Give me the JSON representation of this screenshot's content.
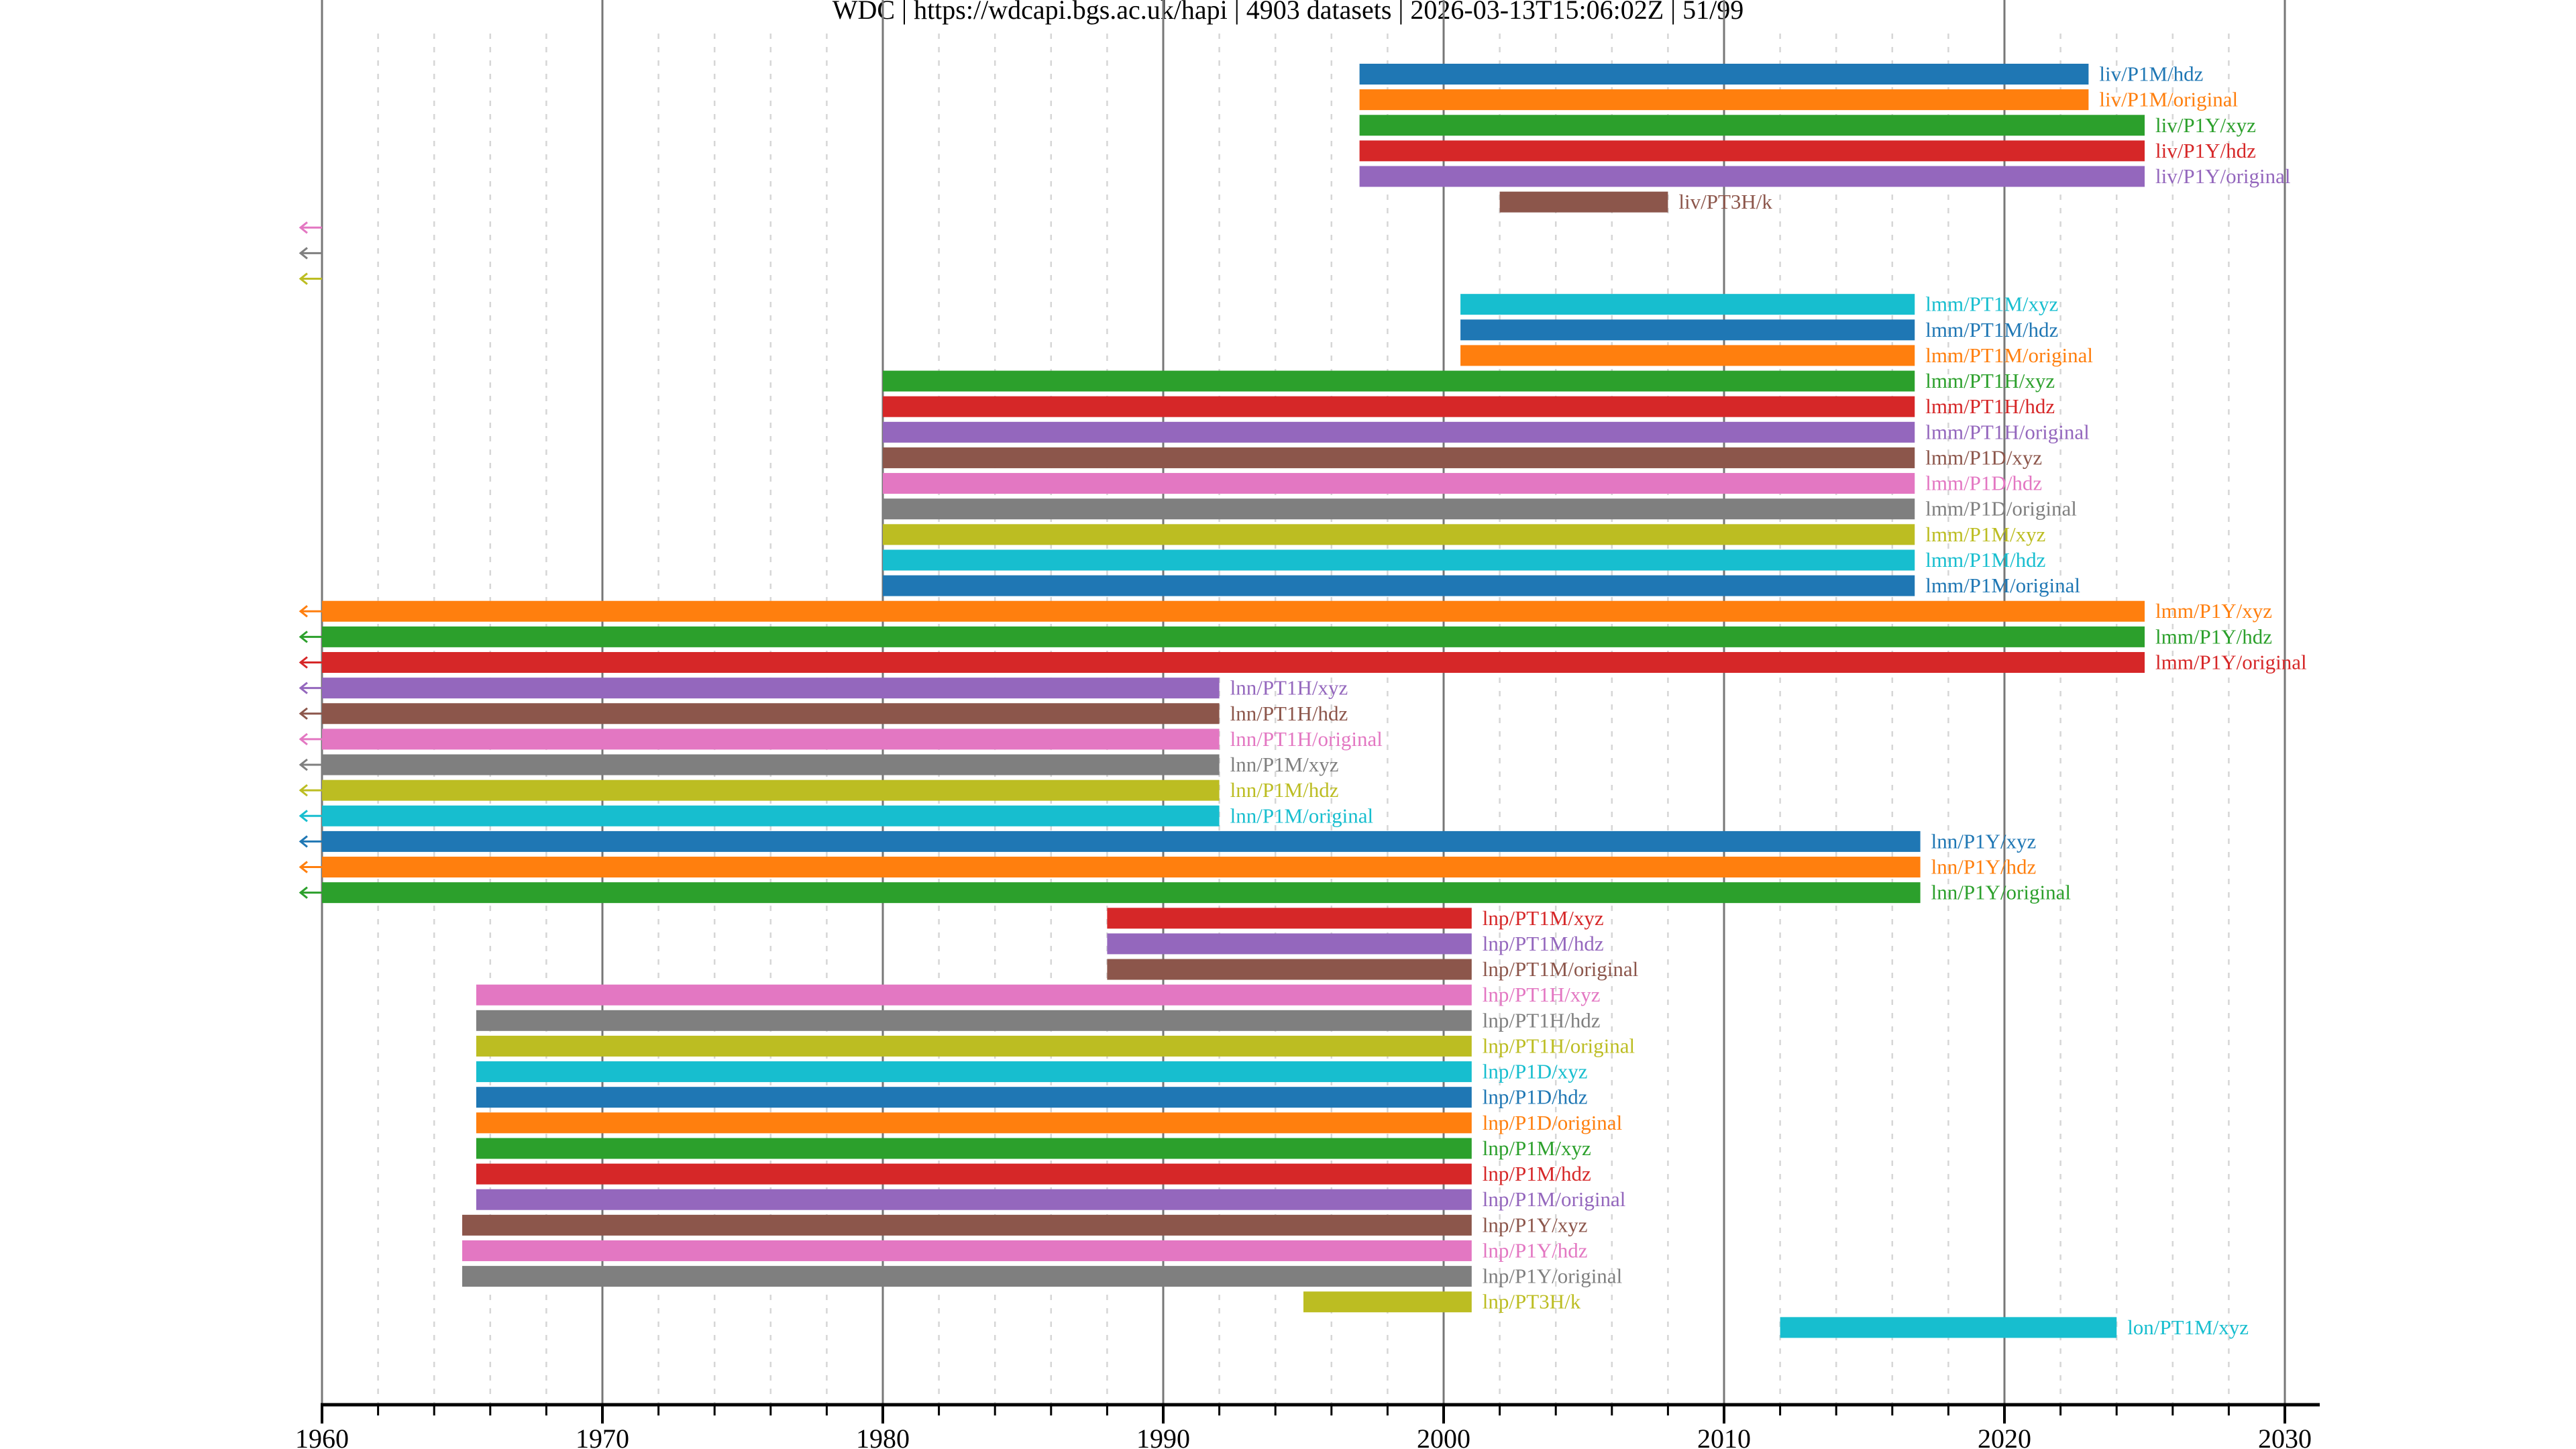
{
  "chart_data": {
    "type": "timeline",
    "title": "WDC | https://wdcapi.bgs.ac.uk/hapi | 4903 datasets | 2026-03-13T15:06:02Z | 51/99",
    "xlabel": "",
    "ylabel": "",
    "xlim": [
      1960,
      2031.2
    ],
    "x_ticks": [
      "1960",
      "1970",
      "1980",
      "1990",
      "2000",
      "2010",
      "2020",
      "2030"
    ],
    "grid": "major solid every 10 years, minor dashed every 2 years",
    "palette": [
      "#1f77b4",
      "#ff7f0e",
      "#2ca02c",
      "#d62728",
      "#9467bd",
      "#8c564b",
      "#e377c2",
      "#7f7f7f",
      "#bcbd22",
      "#17becf"
    ],
    "series": [
      {
        "label": "liv/P1M/hdz",
        "start": 1997.0,
        "end": 2023.0,
        "truncated_left": false
      },
      {
        "label": "liv/P1M/original",
        "start": 1997.0,
        "end": 2023.0,
        "truncated_left": false
      },
      {
        "label": "liv/P1Y/xyz",
        "start": 1997.0,
        "end": 2025.0,
        "truncated_left": false
      },
      {
        "label": "liv/P1Y/hdz",
        "start": 1997.0,
        "end": 2025.0,
        "truncated_left": false
      },
      {
        "label": "liv/P1Y/original",
        "start": 1997.0,
        "end": 2025.0,
        "truncated_left": false
      },
      {
        "label": "liv/PT3H/k",
        "start": 2002.0,
        "end": 2008.0,
        "truncated_left": false
      },
      {
        "label": "",
        "start": null,
        "end": null,
        "truncated_left": true
      },
      {
        "label": "",
        "start": null,
        "end": null,
        "truncated_left": true
      },
      {
        "label": "",
        "start": null,
        "end": null,
        "truncated_left": true
      },
      {
        "label": "lmm/PT1M/xyz",
        "start": 2000.6,
        "end": 2016.8,
        "truncated_left": false
      },
      {
        "label": "lmm/PT1M/hdz",
        "start": 2000.6,
        "end": 2016.8,
        "truncated_left": false
      },
      {
        "label": "lmm/PT1M/original",
        "start": 2000.6,
        "end": 2016.8,
        "truncated_left": false
      },
      {
        "label": "lmm/PT1H/xyz",
        "start": 1980.0,
        "end": 2016.8,
        "truncated_left": false
      },
      {
        "label": "lmm/PT1H/hdz",
        "start": 1980.0,
        "end": 2016.8,
        "truncated_left": false
      },
      {
        "label": "lmm/PT1H/original",
        "start": 1980.0,
        "end": 2016.8,
        "truncated_left": false
      },
      {
        "label": "lmm/P1D/xyz",
        "start": 1980.0,
        "end": 2016.8,
        "truncated_left": false
      },
      {
        "label": "lmm/P1D/hdz",
        "start": 1980.0,
        "end": 2016.8,
        "truncated_left": false
      },
      {
        "label": "lmm/P1D/original",
        "start": 1980.0,
        "end": 2016.8,
        "truncated_left": false
      },
      {
        "label": "lmm/P1M/xyz",
        "start": 1980.0,
        "end": 2016.8,
        "truncated_left": false
      },
      {
        "label": "lmm/P1M/hdz",
        "start": 1980.0,
        "end": 2016.8,
        "truncated_left": false
      },
      {
        "label": "lmm/P1M/original",
        "start": 1980.0,
        "end": 2016.8,
        "truncated_left": false
      },
      {
        "label": "lmm/P1Y/xyz",
        "start": 1960.0,
        "end": 2025.0,
        "truncated_left": true
      },
      {
        "label": "lmm/P1Y/hdz",
        "start": 1960.0,
        "end": 2025.0,
        "truncated_left": true
      },
      {
        "label": "lmm/P1Y/original",
        "start": 1960.0,
        "end": 2025.0,
        "truncated_left": true
      },
      {
        "label": "lnn/PT1H/xyz",
        "start": 1960.0,
        "end": 1992.0,
        "truncated_left": true
      },
      {
        "label": "lnn/PT1H/hdz",
        "start": 1960.0,
        "end": 1992.0,
        "truncated_left": true
      },
      {
        "label": "lnn/PT1H/original",
        "start": 1960.0,
        "end": 1992.0,
        "truncated_left": true
      },
      {
        "label": "lnn/P1M/xyz",
        "start": 1960.0,
        "end": 1992.0,
        "truncated_left": true
      },
      {
        "label": "lnn/P1M/hdz",
        "start": 1960.0,
        "end": 1992.0,
        "truncated_left": true
      },
      {
        "label": "lnn/P1M/original",
        "start": 1960.0,
        "end": 1992.0,
        "truncated_left": true
      },
      {
        "label": "lnn/P1Y/xyz",
        "start": 1960.0,
        "end": 2017.0,
        "truncated_left": true
      },
      {
        "label": "lnn/P1Y/hdz",
        "start": 1960.0,
        "end": 2017.0,
        "truncated_left": true
      },
      {
        "label": "lnn/P1Y/original",
        "start": 1960.0,
        "end": 2017.0,
        "truncated_left": true
      },
      {
        "label": "lnp/PT1M/xyz",
        "start": 1988.0,
        "end": 2001.0,
        "truncated_left": false
      },
      {
        "label": "lnp/PT1M/hdz",
        "start": 1988.0,
        "end": 2001.0,
        "truncated_left": false
      },
      {
        "label": "lnp/PT1M/original",
        "start": 1988.0,
        "end": 2001.0,
        "truncated_left": false
      },
      {
        "label": "lnp/PT1H/xyz",
        "start": 1965.5,
        "end": 2001.0,
        "truncated_left": false
      },
      {
        "label": "lnp/PT1H/hdz",
        "start": 1965.5,
        "end": 2001.0,
        "truncated_left": false
      },
      {
        "label": "lnp/PT1H/original",
        "start": 1965.5,
        "end": 2001.0,
        "truncated_left": false
      },
      {
        "label": "lnp/P1D/xyz",
        "start": 1965.5,
        "end": 2001.0,
        "truncated_left": false
      },
      {
        "label": "lnp/P1D/hdz",
        "start": 1965.5,
        "end": 2001.0,
        "truncated_left": false
      },
      {
        "label": "lnp/P1D/original",
        "start": 1965.5,
        "end": 2001.0,
        "truncated_left": false
      },
      {
        "label": "lnp/P1M/xyz",
        "start": 1965.5,
        "end": 2001.0,
        "truncated_left": false
      },
      {
        "label": "lnp/P1M/hdz",
        "start": 1965.5,
        "end": 2001.0,
        "truncated_left": false
      },
      {
        "label": "lnp/P1M/original",
        "start": 1965.5,
        "end": 2001.0,
        "truncated_left": false
      },
      {
        "label": "lnp/P1Y/xyz",
        "start": 1965.0,
        "end": 2001.0,
        "truncated_left": false
      },
      {
        "label": "lnp/P1Y/hdz",
        "start": 1965.0,
        "end": 2001.0,
        "truncated_left": false
      },
      {
        "label": "lnp/P1Y/original",
        "start": 1965.0,
        "end": 2001.0,
        "truncated_left": false
      },
      {
        "label": "lnp/PT3H/k",
        "start": 1995.0,
        "end": 2001.0,
        "truncated_left": false
      },
      {
        "label": "lon/PT1M/xyz",
        "start": 2012.0,
        "end": 2024.0,
        "truncated_left": false
      }
    ]
  }
}
